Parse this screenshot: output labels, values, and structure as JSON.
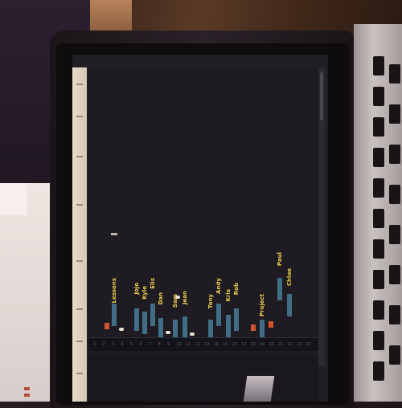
{
  "scene": {
    "description_colors": {
      "heading": "#f2d14a",
      "item": "#5fb3d6",
      "accent": "#d2552e"
    }
  },
  "columns": [
    {
      "heading": "Lessons"
    },
    {
      "heading": "Jojo"
    },
    {
      "heading": "Kyle"
    },
    {
      "heading": "Elis"
    },
    {
      "heading": "Dan"
    },
    {
      "heading": "Sam"
    },
    {
      "heading": "Jean"
    },
    {
      "heading": "Tony"
    },
    {
      "heading": "Andy"
    },
    {
      "heading": "Kris"
    },
    {
      "heading": "Rob"
    },
    {
      "heading": "Project"
    },
    {
      "heading": "Paul"
    },
    {
      "heading": "Chloe"
    }
  ],
  "timeline": {
    "labels": [
      "1",
      "2",
      "3",
      "4",
      "5",
      "6",
      "7",
      "8",
      "9",
      "10",
      "11",
      "12",
      "13",
      "14",
      "15",
      "16",
      "17",
      "18",
      "19",
      "20",
      "21",
      "22",
      "23",
      "24"
    ]
  }
}
